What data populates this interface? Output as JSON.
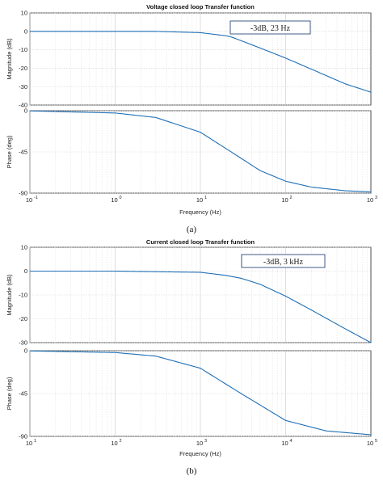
{
  "chart_data": [
    {
      "type": "line",
      "title": "Voltage closed loop Transfer function",
      "caption": "(a)",
      "xlabel": "Frequency (Hz)",
      "x_scale": "log",
      "xlim": [
        0.1,
        1000
      ],
      "x_tick_labels": [
        "10",
        "-1",
        "10",
        "0",
        "10",
        "1",
        "10",
        "2",
        "10",
        "3"
      ],
      "annotation": "-3dB, 23 Hz",
      "corner_hz": 23,
      "grid": true,
      "magnitude": {
        "ylabel": "Magnitude (dB)",
        "ylim": [
          -40,
          10
        ],
        "y_ticks": [
          "10",
          "0",
          "-10",
          "-20",
          "-30",
          "-40"
        ],
        "x": [
          0.1,
          1,
          3,
          10,
          20,
          23,
          50,
          100,
          200,
          500,
          1000
        ],
        "y": [
          0,
          0,
          0,
          -0.7,
          -2.4,
          -3,
          -9,
          -14.5,
          -20.5,
          -28.5,
          -33
        ]
      },
      "phase": {
        "ylabel": "Phase (deg)",
        "ylim": [
          -90,
          0
        ],
        "y_ticks": [
          "0",
          "-45",
          "-90"
        ],
        "x": [
          0.1,
          1,
          3,
          10,
          23,
          50,
          100,
          200,
          500,
          1000
        ],
        "y": [
          -0.2,
          -2.5,
          -7.4,
          -23.5,
          -45,
          -65.3,
          -77,
          -83.4,
          -87.4,
          -88.7
        ]
      }
    },
    {
      "type": "line",
      "title": "Current closed loop Transfer function",
      "caption": "(b)",
      "xlabel": "Frequency (Hz)",
      "x_scale": "log",
      "xlim": [
        10,
        100000
      ],
      "x_tick_labels": [
        "10",
        "1",
        "10",
        "2",
        "10",
        "3",
        "10",
        "4",
        "10",
        "5"
      ],
      "annotation": "-3dB, 3 kHz",
      "corner_hz": 3000,
      "grid": true,
      "magnitude": {
        "ylabel": "Magnitude (dB)",
        "ylim": [
          -30,
          10
        ],
        "y_ticks": [
          "10",
          "0",
          "-10",
          "-20",
          "-30"
        ],
        "x": [
          10,
          100,
          1000,
          2000,
          3000,
          5000,
          10000,
          20000,
          50000,
          100000
        ],
        "y": [
          0,
          0,
          -0.5,
          -1.8,
          -3,
          -5.5,
          -10.5,
          -16.3,
          -24.2,
          -30
        ]
      },
      "phase": {
        "ylabel": "Phase (deg)",
        "ylim": [
          -90,
          0
        ],
        "y_ticks": [
          "0",
          "-45",
          "-90"
        ],
        "x": [
          10,
          100,
          300,
          1000,
          3000,
          10000,
          30000,
          100000
        ],
        "y": [
          -0.2,
          -1.9,
          -5.7,
          -18.4,
          -45,
          -73.3,
          -84.3,
          -88.3
        ]
      }
    }
  ]
}
